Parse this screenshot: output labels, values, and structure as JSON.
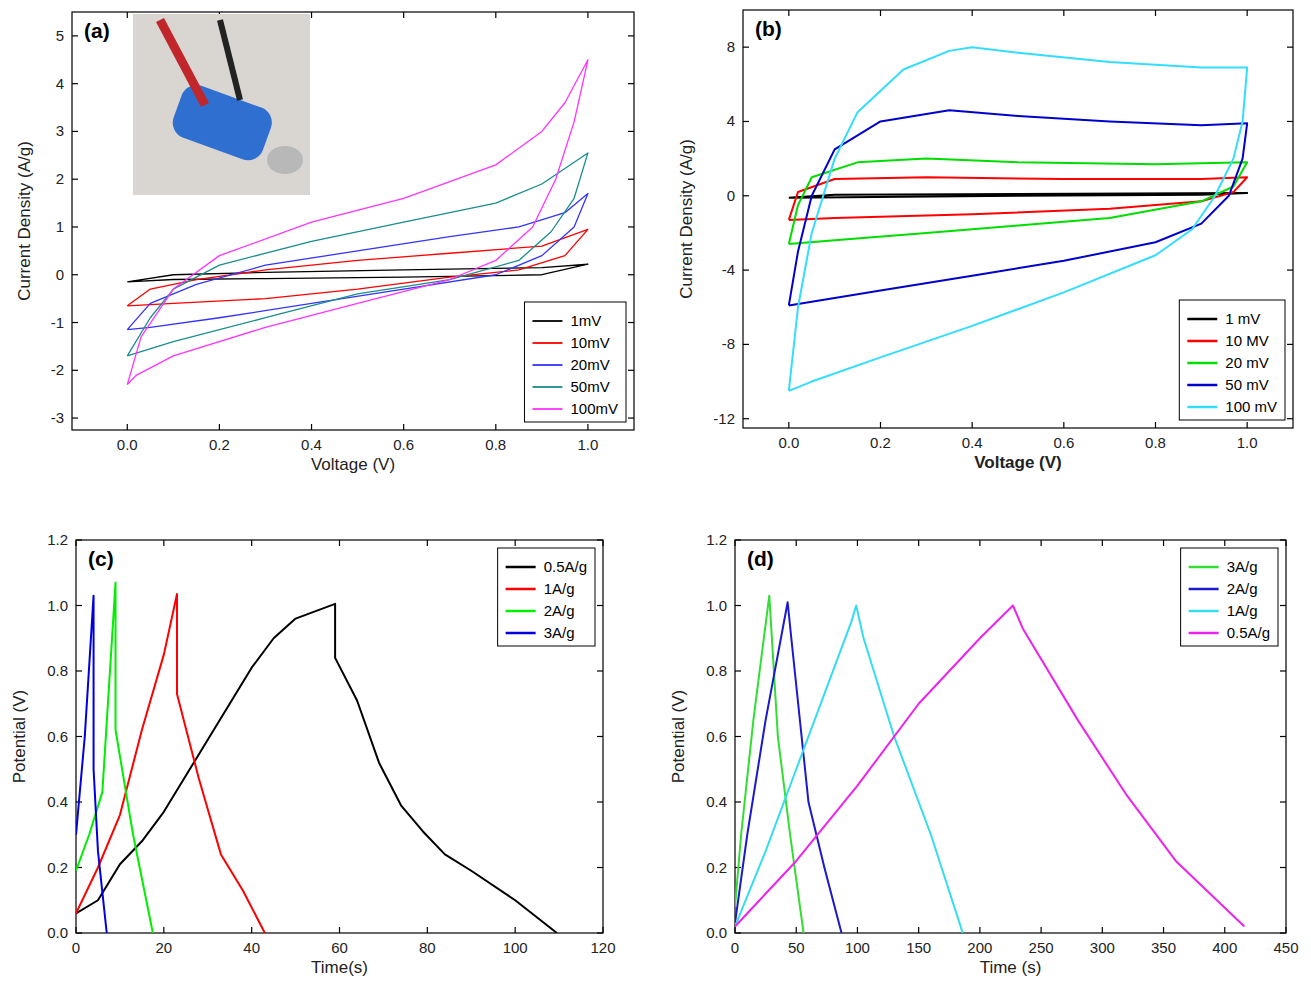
{
  "chart_data": [
    {
      "type": "line",
      "title": "(a)",
      "x_label": "Voltage (V)",
      "y_label": "Current Density (A/g)",
      "xlim": [
        -0.12,
        1.1
      ],
      "ylim": [
        -3.25,
        5.5
      ],
      "xticks": [
        {
          "value": 0,
          "label": "0.0"
        },
        {
          "value": 0.2,
          "label": "0.2"
        },
        {
          "value": 0.4,
          "label": "0.4"
        },
        {
          "value": 0.6,
          "label": "0.6"
        },
        {
          "value": 0.8,
          "label": "0.8"
        },
        {
          "value": 1,
          "label": "1.0"
        }
      ],
      "yticks": [
        -3,
        -2,
        -1,
        0,
        1,
        2,
        3,
        4,
        5
      ],
      "legend": "lower right",
      "series": [
        {
          "name": "1mV",
          "color": "#000000",
          "x": [
            0,
            0.1,
            0.3,
            0.6,
            0.9,
            1.0,
            0.9,
            0.6,
            0.3,
            0.1,
            0
          ],
          "values": [
            -0.15,
            0.0,
            0.05,
            0.1,
            0.15,
            0.22,
            0.0,
            -0.05,
            -0.08,
            -0.1,
            -0.15
          ]
        },
        {
          "name": "10mV",
          "color": "#ff0000",
          "x": [
            0,
            0.05,
            0.15,
            0.3,
            0.5,
            0.7,
            0.9,
            1.0,
            0.95,
            0.85,
            0.7,
            0.5,
            0.3,
            0.1,
            0
          ],
          "values": [
            -0.65,
            -0.3,
            -0.1,
            0.1,
            0.3,
            0.45,
            0.6,
            0.95,
            0.4,
            0.1,
            -0.05,
            -0.3,
            -0.5,
            -0.6,
            -0.65
          ]
        },
        {
          "name": "20mV",
          "color": "#3333ff",
          "x": [
            0,
            0.05,
            0.15,
            0.3,
            0.5,
            0.7,
            0.85,
            0.95,
            1.0,
            0.97,
            0.9,
            0.8,
            0.6,
            0.4,
            0.2,
            0.05,
            0
          ],
          "values": [
            -1.15,
            -0.6,
            -0.2,
            0.2,
            0.5,
            0.8,
            1.0,
            1.3,
            1.7,
            1.0,
            0.4,
            0.0,
            -0.3,
            -0.6,
            -0.9,
            -1.1,
            -1.15
          ]
        },
        {
          "name": "50mV",
          "color": "#1a8c8c",
          "x": [
            0,
            0.05,
            0.1,
            0.2,
            0.4,
            0.6,
            0.8,
            0.9,
            1.0,
            0.97,
            0.92,
            0.85,
            0.7,
            0.5,
            0.3,
            0.1,
            0
          ],
          "values": [
            -1.7,
            -0.9,
            -0.3,
            0.2,
            0.7,
            1.1,
            1.5,
            1.9,
            2.55,
            1.6,
            0.9,
            0.3,
            -0.1,
            -0.4,
            -0.9,
            -1.4,
            -1.7
          ]
        },
        {
          "name": "100mV",
          "color": "#ff33ff",
          "x": [
            0,
            0.03,
            0.1,
            0.2,
            0.4,
            0.6,
            0.8,
            0.9,
            0.95,
            1.0,
            0.97,
            0.93,
            0.88,
            0.8,
            0.7,
            0.5,
            0.3,
            0.1,
            0.02,
            0
          ],
          "values": [
            -2.3,
            -1.3,
            -0.3,
            0.4,
            1.1,
            1.6,
            2.3,
            3.0,
            3.6,
            4.5,
            3.2,
            2.0,
            1.0,
            0.3,
            -0.1,
            -0.6,
            -1.1,
            -1.7,
            -2.1,
            -2.3
          ]
        }
      ]
    },
    {
      "type": "line",
      "title": "(b)",
      "x_label": "Voltage (V)",
      "y_label": "Current Density (A/g)",
      "xlim": [
        -0.1,
        1.1
      ],
      "ylim": [
        -12.5,
        10
      ],
      "xticks": [
        {
          "value": 0,
          "label": "0.0"
        },
        {
          "value": 0.2,
          "label": "0.2"
        },
        {
          "value": 0.4,
          "label": "0.4"
        },
        {
          "value": 0.6,
          "label": "0.6"
        },
        {
          "value": 0.8,
          "label": "0.8"
        },
        {
          "value": 1,
          "label": "1.0"
        }
      ],
      "yticks": [
        -12,
        -8,
        -4,
        0,
        4,
        8
      ],
      "legend": "lower right",
      "series": [
        {
          "name": "1 mV",
          "color": "#000000",
          "x": [
            0,
            0.1,
            0.5,
            1.0,
            0.9,
            0.5,
            0
          ],
          "values": [
            -0.1,
            0.05,
            0.1,
            0.15,
            0.05,
            0.0,
            -0.1
          ]
        },
        {
          "name": "10 MV",
          "color": "#ff0000",
          "x": [
            0,
            0.02,
            0.1,
            0.3,
            0.6,
            0.9,
            1.0,
            0.97,
            0.9,
            0.7,
            0.4,
            0.1,
            0
          ],
          "values": [
            -1.3,
            0.2,
            0.9,
            1.0,
            0.9,
            0.9,
            1.0,
            0.2,
            -0.3,
            -0.7,
            -1.0,
            -1.2,
            -1.3
          ]
        },
        {
          "name": "20 mV",
          "color": "#00dd00",
          "x": [
            0,
            0.02,
            0.05,
            0.15,
            0.3,
            0.5,
            0.8,
            1.0,
            0.97,
            0.9,
            0.7,
            0.5,
            0.3,
            0.1,
            0
          ],
          "values": [
            -2.6,
            -0.5,
            1.0,
            1.8,
            2.0,
            1.8,
            1.7,
            1.8,
            0.5,
            -0.3,
            -1.2,
            -1.6,
            -2.0,
            -2.4,
            -2.6
          ]
        },
        {
          "name": "50 mV",
          "color": "#0000cc",
          "x": [
            0,
            0.02,
            0.05,
            0.1,
            0.2,
            0.35,
            0.5,
            0.7,
            0.9,
            1.0,
            0.99,
            0.96,
            0.9,
            0.8,
            0.6,
            0.4,
            0.2,
            0.05,
            0
          ],
          "values": [
            -5.9,
            -3,
            0,
            2.5,
            4.0,
            4.6,
            4.3,
            4.0,
            3.8,
            3.9,
            2,
            0,
            -1.5,
            -2.5,
            -3.5,
            -4.3,
            -5.1,
            -5.7,
            -5.9
          ]
        },
        {
          "name": "100 mV",
          "color": "#33ddff",
          "x": [
            0,
            0.02,
            0.05,
            0.1,
            0.15,
            0.25,
            0.35,
            0.4,
            0.5,
            0.7,
            0.9,
            1.0,
            0.99,
            0.97,
            0.93,
            0.88,
            0.8,
            0.6,
            0.4,
            0.2,
            0.05,
            0
          ],
          "values": [
            -10.5,
            -6,
            -2,
            2.0,
            4.5,
            6.8,
            7.8,
            8.0,
            7.7,
            7.2,
            6.9,
            6.9,
            4,
            2,
            0,
            -1.8,
            -3.2,
            -5.2,
            -7.0,
            -8.7,
            -10.0,
            -10.5
          ]
        }
      ]
    },
    {
      "type": "line",
      "title": "(c)",
      "x_label": "Time(s)",
      "y_label": "Potential (V)",
      "xlim": [
        0,
        120
      ],
      "ylim": [
        0,
        1.2
      ],
      "xticks": [
        0,
        20,
        40,
        60,
        80,
        100,
        120
      ],
      "yticks": [
        {
          "value": 0,
          "label": "0.0"
        },
        {
          "value": 0.2,
          "label": "0.2"
        },
        {
          "value": 0.4,
          "label": "0.4"
        },
        {
          "value": 0.6,
          "label": "0.6"
        },
        {
          "value": 0.8,
          "label": "0.8"
        },
        {
          "value": 1,
          "label": "1.0"
        },
        {
          "value": 1.2,
          "label": "1.2"
        }
      ],
      "legend": "upper right",
      "series": [
        {
          "name": "0.5A/g",
          "color": "#000000",
          "x": [
            0,
            5,
            10,
            15,
            20,
            25,
            30,
            35,
            40,
            45,
            50,
            59,
            59,
            64,
            69,
            74,
            79,
            84,
            90,
            100,
            109.5
          ],
          "values": [
            0.06,
            0.1,
            0.21,
            0.28,
            0.37,
            0.48,
            0.59,
            0.7,
            0.81,
            0.9,
            0.96,
            1.005,
            0.84,
            0.71,
            0.52,
            0.39,
            0.31,
            0.24,
            0.19,
            0.1,
            0.0
          ]
        },
        {
          "name": "1A/g",
          "color": "#ff0000",
          "x": [
            0,
            5,
            10,
            15,
            20,
            23,
            23,
            28,
            33,
            38,
            43
          ],
          "values": [
            0.06,
            0.2,
            0.36,
            0.62,
            0.85,
            1.035,
            0.73,
            0.47,
            0.24,
            0.13,
            0.0
          ]
        },
        {
          "name": "2A/g",
          "color": "#00ee00",
          "x": [
            0,
            3,
            6,
            9,
            9,
            13,
            17.5
          ],
          "values": [
            0.19,
            0.3,
            0.43,
            1.07,
            0.62,
            0.3,
            0.0
          ]
        },
        {
          "name": "3A/g",
          "color": "#0000dd",
          "x": [
            0,
            2,
            4,
            4,
            5,
            7
          ],
          "values": [
            0.3,
            0.6,
            1.03,
            0.5,
            0.25,
            0.0
          ]
        }
      ]
    },
    {
      "type": "line",
      "title": "(d)",
      "x_label": "Time (s)",
      "y_label": "Potential (V)",
      "xlim": [
        0,
        450
      ],
      "ylim": [
        0,
        1.2
      ],
      "xticks": [
        0,
        50,
        100,
        150,
        200,
        250,
        300,
        350,
        400,
        450
      ],
      "yticks": [
        {
          "value": 0,
          "label": "0.0"
        },
        {
          "value": 0.2,
          "label": "0.2"
        },
        {
          "value": 0.4,
          "label": "0.4"
        },
        {
          "value": 0.6,
          "label": "0.6"
        },
        {
          "value": 0.8,
          "label": "0.8"
        },
        {
          "value": 1,
          "label": "1.0"
        },
        {
          "value": 1.2,
          "label": "1.2"
        }
      ],
      "legend": "upper right",
      "series": [
        {
          "name": "3A/g",
          "color": "#33dd33",
          "x": [
            0,
            5,
            15,
            28,
            35,
            45,
            56
          ],
          "values": [
            0.08,
            0.3,
            0.65,
            1.03,
            0.6,
            0.3,
            0.0
          ]
        },
        {
          "name": "2A/g",
          "color": "#1a1acc",
          "x": [
            0,
            10,
            25,
            43,
            46,
            60,
            73,
            87
          ],
          "values": [
            0.03,
            0.3,
            0.65,
            1.01,
            0.9,
            0.4,
            0.2,
            0.0
          ]
        },
        {
          "name": "1A/g",
          "color": "#33ddee",
          "x": [
            0,
            25,
            50,
            75,
            95,
            99,
            105,
            130,
            160,
            186
          ],
          "values": [
            0.02,
            0.25,
            0.5,
            0.75,
            0.95,
            1.0,
            0.9,
            0.6,
            0.3,
            0.0
          ]
        },
        {
          "name": "0.5A/g",
          "color": "#ee22ee",
          "x": [
            0,
            50,
            100,
            150,
            200,
            227,
            235,
            280,
            320,
            360,
            416
          ],
          "values": [
            0.02,
            0.22,
            0.45,
            0.7,
            0.9,
            1.0,
            0.93,
            0.65,
            0.42,
            0.22,
            0.02
          ]
        }
      ]
    }
  ]
}
